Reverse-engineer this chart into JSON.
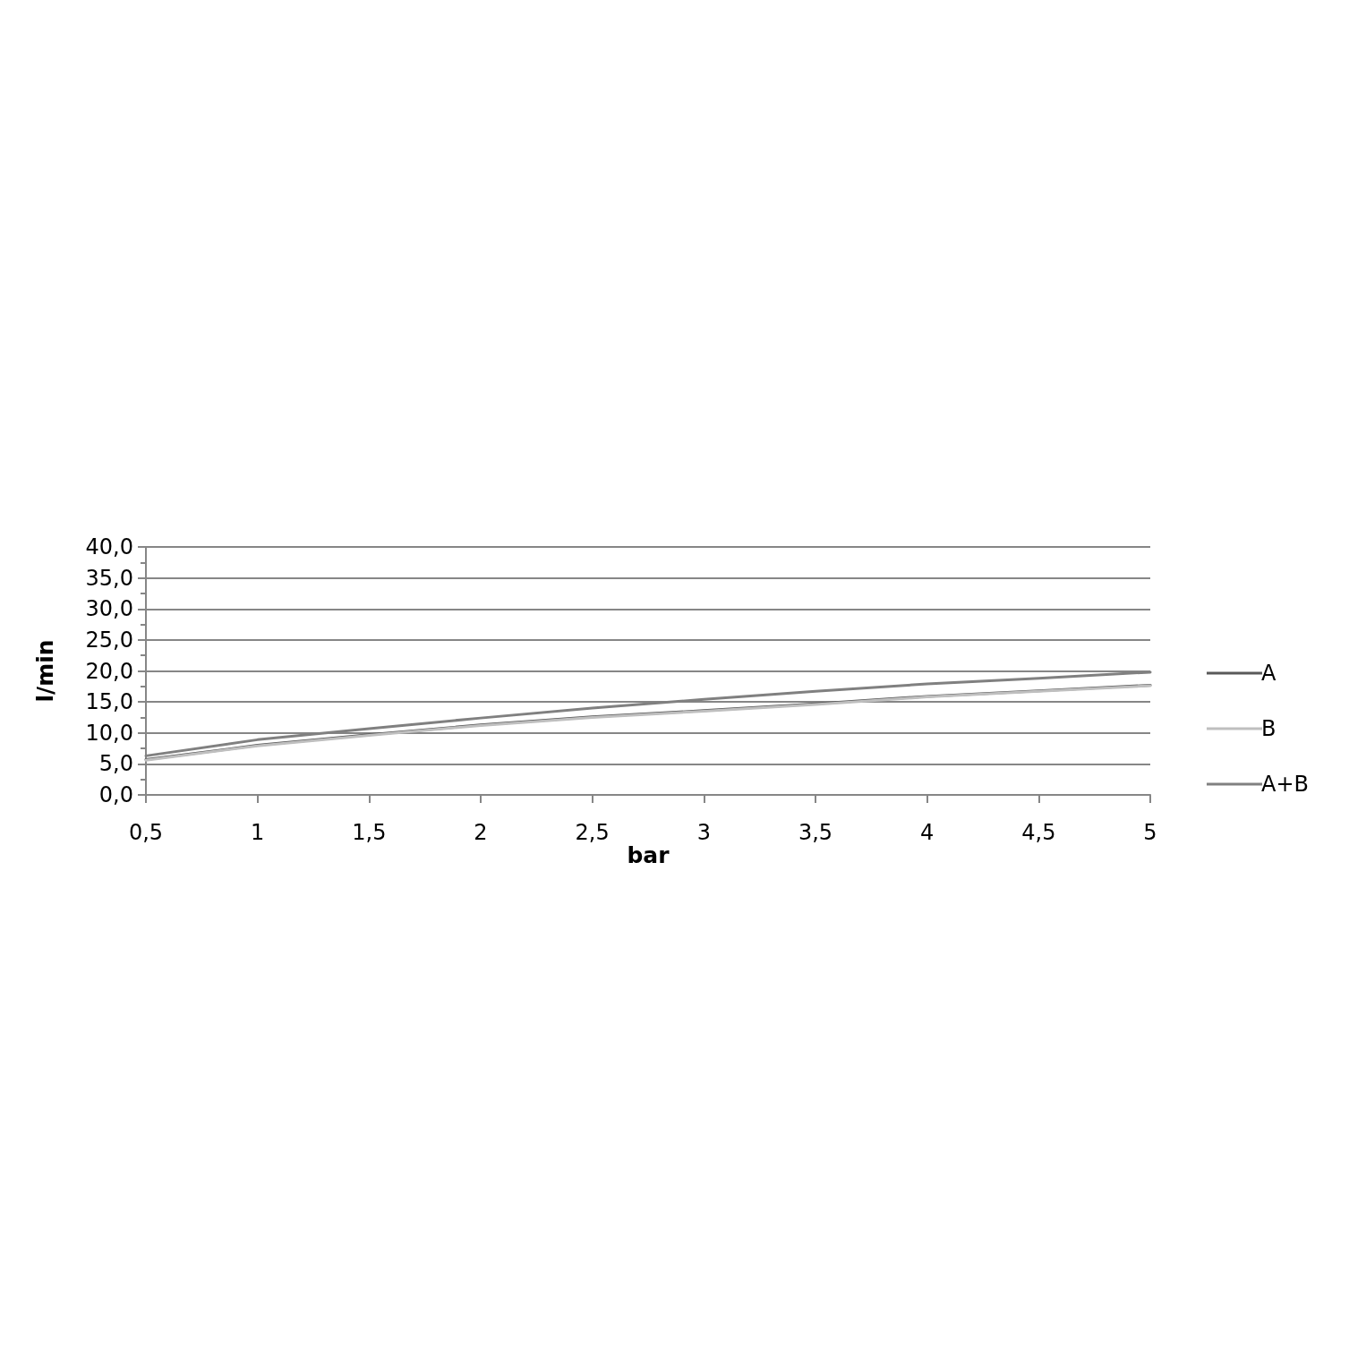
{
  "chart_data": {
    "type": "line",
    "xlabel": "bar",
    "ylabel": "l/min",
    "x": [
      0.5,
      1,
      1.5,
      2,
      2.5,
      3,
      3.5,
      4,
      4.5,
      5
    ],
    "series": [
      {
        "name": "A",
        "color": "#595959",
        "values": [
          5.7,
          8.0,
          9.7,
          11.3,
          12.6,
          13.6,
          14.7,
          15.9,
          16.8,
          17.7
        ]
      },
      {
        "name": "B",
        "color": "#bfbfbf",
        "values": [
          5.6,
          7.9,
          9.6,
          11.2,
          12.5,
          13.5,
          14.6,
          15.8,
          16.7,
          17.6
        ]
      },
      {
        "name": "A+B",
        "color": "#808080",
        "values": [
          6.3,
          8.9,
          10.7,
          12.4,
          14.0,
          15.4,
          16.7,
          17.9,
          18.8,
          19.8
        ]
      }
    ],
    "xlim": [
      0.5,
      5
    ],
    "xticks": [
      {
        "value": 0.5,
        "label": "0,5"
      },
      1,
      {
        "value": 1.5,
        "label": "1,5"
      },
      2,
      {
        "value": 2.5,
        "label": "2,5"
      },
      3,
      {
        "value": 3.5,
        "label": "3,5"
      },
      4,
      {
        "value": 4.5,
        "label": "4,5"
      },
      5
    ],
    "ylim": [
      0,
      40
    ],
    "yticks": [
      {
        "value": 0,
        "label": "0,0"
      },
      {
        "value": 5,
        "label": "5,0"
      },
      {
        "value": 10,
        "label": "10,0"
      },
      {
        "value": 15,
        "label": "15,0"
      },
      {
        "value": 20,
        "label": "20,0"
      },
      {
        "value": 25,
        "label": "25,0"
      },
      {
        "value": 30,
        "label": "30,0"
      },
      {
        "value": 35,
        "label": "35,0"
      },
      {
        "value": 40,
        "label": "40,0"
      }
    ],
    "grid": "y",
    "legend": "right",
    "marker": "none",
    "line_style": "solid"
  }
}
